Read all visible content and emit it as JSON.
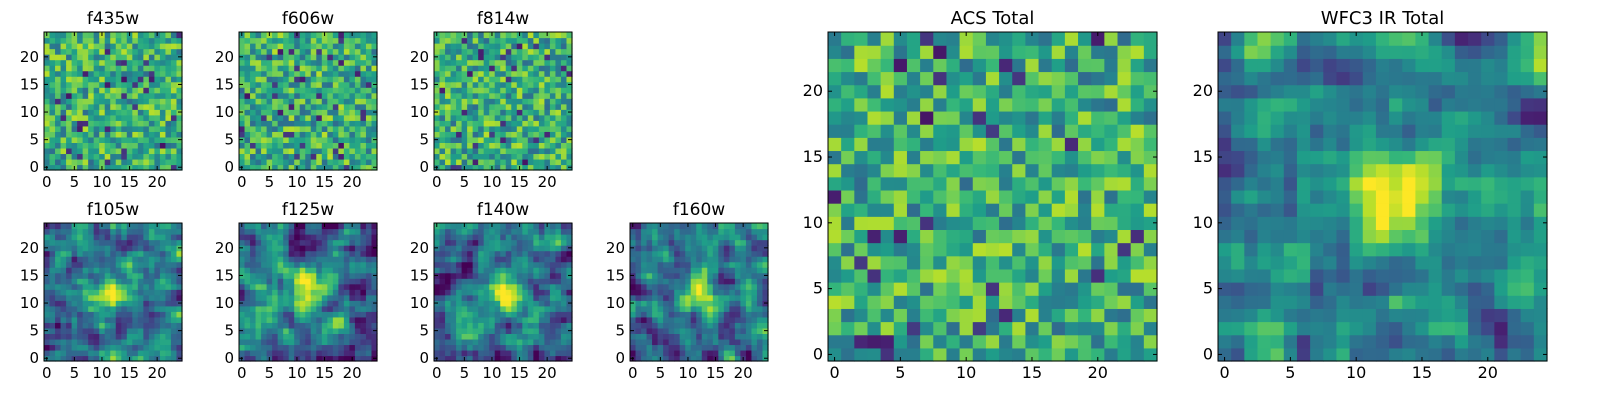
{
  "chart_data": [
    {
      "type": "heatmap",
      "title": "f435w",
      "xlabel": "",
      "ylabel": "",
      "grid": false,
      "colormap": "viridis",
      "xlim": [
        -0.5,
        24.5
      ],
      "ylim": [
        -0.5,
        24.5
      ],
      "xticks": [
        0,
        5,
        10,
        15,
        20
      ],
      "yticks": [
        0,
        5,
        10,
        15,
        20
      ],
      "cells": [
        25,
        25
      ],
      "values": "noise field, mostly 0.7-0.9 (yellow-green), scattered dark pixels"
    },
    {
      "type": "heatmap",
      "title": "f606w",
      "xlabel": "",
      "ylabel": "",
      "grid": false,
      "colormap": "viridis",
      "xlim": [
        -0.5,
        24.5
      ],
      "ylim": [
        -0.5,
        24.5
      ],
      "xticks": [
        0,
        5,
        10,
        15,
        20
      ],
      "yticks": [
        0,
        5,
        10,
        15,
        20
      ],
      "cells": [
        25,
        25
      ],
      "values": "noise field, mostly 0.6-0.8 (green-yellow), scattered dark pixels"
    },
    {
      "type": "heatmap",
      "title": "f814w",
      "xlabel": "",
      "ylabel": "",
      "grid": false,
      "colormap": "viridis",
      "xlim": [
        -0.5,
        24.5
      ],
      "ylim": [
        -0.5,
        24.5
      ],
      "xticks": [
        0,
        5,
        10,
        15,
        20
      ],
      "yticks": [
        0,
        5,
        10,
        15,
        20
      ],
      "cells": [
        25,
        25
      ],
      "values": "noise field, mostly 0.6-0.8, scattered dark pixels"
    },
    {
      "type": "heatmap",
      "title": "f105w",
      "xlabel": "",
      "ylabel": "",
      "grid": false,
      "colormap": "viridis",
      "xlim": [
        -0.5,
        24.5
      ],
      "ylim": [
        -0.5,
        24.5
      ],
      "xticks": [
        0,
        5,
        10,
        15,
        20
      ],
      "yticks": [
        0,
        5,
        10,
        15,
        20
      ],
      "cells": [
        25,
        25
      ],
      "values": "smoothed noise with bright blob near (12,12)"
    },
    {
      "type": "heatmap",
      "title": "f125w",
      "xlabel": "",
      "ylabel": "",
      "grid": false,
      "colormap": "viridis",
      "xlim": [
        -0.5,
        24.5
      ],
      "ylim": [
        -0.5,
        24.5
      ],
      "xticks": [
        0,
        5,
        10,
        15,
        20
      ],
      "yticks": [
        0,
        5,
        10,
        15,
        20
      ],
      "cells": [
        25,
        25
      ],
      "values": "smoothed noise with bright blob near (12,12)"
    },
    {
      "type": "heatmap",
      "title": "f140w",
      "xlabel": "",
      "ylabel": "",
      "grid": false,
      "colormap": "viridis",
      "xlim": [
        -0.5,
        24.5
      ],
      "ylim": [
        -0.5,
        24.5
      ],
      "xticks": [
        0,
        5,
        10,
        15,
        20
      ],
      "yticks": [
        0,
        5,
        10,
        15,
        20
      ],
      "cells": [
        25,
        25
      ],
      "values": "smoothed noise with bright blob near (12,12)"
    },
    {
      "type": "heatmap",
      "title": "f160w",
      "xlabel": "",
      "ylabel": "",
      "grid": false,
      "colormap": "viridis",
      "xlim": [
        -0.5,
        24.5
      ],
      "ylim": [
        -0.5,
        24.5
      ],
      "xticks": [
        0,
        5,
        10,
        15,
        20
      ],
      "yticks": [
        0,
        5,
        10,
        15,
        20
      ],
      "cells": [
        25,
        25
      ],
      "values": "smoothed noise with bright blob near (12,12)"
    },
    {
      "type": "heatmap",
      "title": "ACS Total",
      "xlabel": "",
      "ylabel": "",
      "grid": false,
      "colormap": "viridis",
      "xlim": [
        -0.5,
        24.5
      ],
      "ylim": [
        -0.5,
        24.5
      ],
      "xticks": [
        0,
        5,
        10,
        15,
        20
      ],
      "yticks": [
        0,
        5,
        10,
        15,
        20
      ],
      "cells": [
        25,
        25
      ],
      "values": "noise field, mostly 0.7-0.9, a few dark pixels"
    },
    {
      "type": "heatmap",
      "title": "WFC3 IR Total",
      "xlabel": "",
      "ylabel": "",
      "grid": false,
      "colormap": "viridis",
      "xlim": [
        -0.5,
        24.5
      ],
      "ylim": [
        -0.5,
        24.5
      ],
      "xticks": [
        0,
        5,
        10,
        15,
        20
      ],
      "yticks": [
        0,
        5,
        10,
        15,
        20
      ],
      "cells": [
        25,
        25
      ],
      "values": "smoothed noise with bright yellow blob centered near (13,12)"
    }
  ]
}
